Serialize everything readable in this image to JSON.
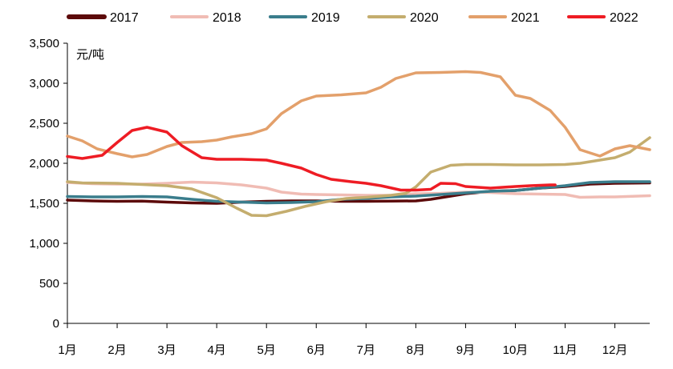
{
  "chart_data": {
    "type": "line",
    "title": "",
    "xlabel": "",
    "ylabel": "元/吨",
    "ylim": [
      0,
      3500
    ],
    "yticks": [
      0,
      500,
      1000,
      1500,
      2000,
      2500,
      3000,
      3500
    ],
    "ytick_labels": [
      "0",
      "500",
      "1,000",
      "1,500",
      "2,000",
      "2,500",
      "3,000",
      "3,500"
    ],
    "xlim": [
      1,
      12.7
    ],
    "xticks": [
      1,
      2,
      3,
      4,
      5,
      6,
      7,
      8,
      9,
      10,
      11,
      12
    ],
    "xtick_labels": [
      "1月",
      "2月",
      "3月",
      "4月",
      "5月",
      "6月",
      "7月",
      "8月",
      "9月",
      "10月",
      "11月",
      "12月"
    ],
    "grid": false,
    "legend_position": "top",
    "series": [
      {
        "name": "2017",
        "color": "#5c0a0a",
        "points": [
          [
            1,
            1540
          ],
          [
            1.5,
            1530
          ],
          [
            2,
            1525
          ],
          [
            2.5,
            1528
          ],
          [
            3,
            1515
          ],
          [
            3.5,
            1505
          ],
          [
            4,
            1500
          ],
          [
            4.5,
            1515
          ],
          [
            5,
            1525
          ],
          [
            5.5,
            1530
          ],
          [
            6,
            1530
          ],
          [
            6.5,
            1525
          ],
          [
            7,
            1525
          ],
          [
            7.5,
            1528
          ],
          [
            8,
            1530
          ],
          [
            8.3,
            1550
          ],
          [
            8.7,
            1590
          ],
          [
            9,
            1620
          ],
          [
            9.5,
            1650
          ],
          [
            10,
            1660
          ],
          [
            10.5,
            1690
          ],
          [
            11,
            1710
          ],
          [
            11.5,
            1740
          ],
          [
            12,
            1750
          ],
          [
            12.7,
            1755
          ]
        ]
      },
      {
        "name": "2018",
        "color": "#f0bcb4",
        "points": [
          [
            1,
            1760
          ],
          [
            1.5,
            1745
          ],
          [
            2,
            1740
          ],
          [
            2.5,
            1740
          ],
          [
            3,
            1750
          ],
          [
            3.5,
            1765
          ],
          [
            4,
            1755
          ],
          [
            4.5,
            1730
          ],
          [
            5,
            1690
          ],
          [
            5.3,
            1640
          ],
          [
            5.7,
            1615
          ],
          [
            6,
            1610
          ],
          [
            6.5,
            1605
          ],
          [
            7,
            1600
          ],
          [
            7.5,
            1600
          ],
          [
            8,
            1620
          ],
          [
            8.5,
            1625
          ],
          [
            9,
            1640
          ],
          [
            9.5,
            1635
          ],
          [
            10,
            1620
          ],
          [
            10.5,
            1615
          ],
          [
            11,
            1610
          ],
          [
            11.3,
            1575
          ],
          [
            11.7,
            1580
          ],
          [
            12,
            1580
          ],
          [
            12.7,
            1595
          ]
        ]
      },
      {
        "name": "2019",
        "color": "#3a7d8c",
        "points": [
          [
            1,
            1585
          ],
          [
            1.5,
            1580
          ],
          [
            2,
            1580
          ],
          [
            2.5,
            1585
          ],
          [
            3,
            1580
          ],
          [
            3.5,
            1550
          ],
          [
            4,
            1525
          ],
          [
            4.5,
            1515
          ],
          [
            5,
            1505
          ],
          [
            5.5,
            1510
          ],
          [
            6,
            1520
          ],
          [
            6.5,
            1550
          ],
          [
            7,
            1560
          ],
          [
            7.5,
            1580
          ],
          [
            8,
            1590
          ],
          [
            8.5,
            1610
          ],
          [
            9,
            1630
          ],
          [
            9.5,
            1650
          ],
          [
            10,
            1660
          ],
          [
            10.5,
            1690
          ],
          [
            11,
            1720
          ],
          [
            11.5,
            1760
          ],
          [
            12,
            1770
          ],
          [
            12.7,
            1770
          ]
        ]
      },
      {
        "name": "2020",
        "color": "#c4ad6e",
        "points": [
          [
            1,
            1770
          ],
          [
            1.3,
            1755
          ],
          [
            2,
            1750
          ],
          [
            2.5,
            1735
          ],
          [
            3,
            1720
          ],
          [
            3.5,
            1680
          ],
          [
            4,
            1570
          ],
          [
            4.4,
            1440
          ],
          [
            4.7,
            1350
          ],
          [
            5,
            1345
          ],
          [
            5.4,
            1400
          ],
          [
            5.8,
            1465
          ],
          [
            6.2,
            1520
          ],
          [
            6.6,
            1560
          ],
          [
            7,
            1575
          ],
          [
            7.5,
            1600
          ],
          [
            7.8,
            1625
          ],
          [
            8,
            1705
          ],
          [
            8.3,
            1890
          ],
          [
            8.7,
            1975
          ],
          [
            9,
            1985
          ],
          [
            9.5,
            1985
          ],
          [
            10,
            1980
          ],
          [
            10.5,
            1980
          ],
          [
            11,
            1985
          ],
          [
            11.3,
            2000
          ],
          [
            11.7,
            2040
          ],
          [
            12,
            2070
          ],
          [
            12.3,
            2140
          ],
          [
            12.7,
            2320
          ]
        ]
      },
      {
        "name": "2021",
        "color": "#e3a06b",
        "points": [
          [
            1,
            2340
          ],
          [
            1.3,
            2280
          ],
          [
            1.6,
            2180
          ],
          [
            2,
            2120
          ],
          [
            2.3,
            2080
          ],
          [
            2.6,
            2110
          ],
          [
            3,
            2210
          ],
          [
            3.3,
            2260
          ],
          [
            3.7,
            2270
          ],
          [
            4,
            2290
          ],
          [
            4.3,
            2330
          ],
          [
            4.7,
            2370
          ],
          [
            5,
            2430
          ],
          [
            5.3,
            2620
          ],
          [
            5.7,
            2780
          ],
          [
            6,
            2840
          ],
          [
            6.5,
            2855
          ],
          [
            7,
            2880
          ],
          [
            7.3,
            2950
          ],
          [
            7.6,
            3060
          ],
          [
            8,
            3130
          ],
          [
            8.5,
            3135
          ],
          [
            9,
            3145
          ],
          [
            9.3,
            3135
          ],
          [
            9.7,
            3080
          ],
          [
            10,
            2850
          ],
          [
            10.3,
            2810
          ],
          [
            10.7,
            2660
          ],
          [
            11,
            2450
          ],
          [
            11.3,
            2170
          ],
          [
            11.7,
            2090
          ],
          [
            12,
            2180
          ],
          [
            12.3,
            2220
          ],
          [
            12.7,
            2170
          ]
        ]
      },
      {
        "name": "2022",
        "color": "#ee1c24",
        "points": [
          [
            1,
            2085
          ],
          [
            1.3,
            2060
          ],
          [
            1.7,
            2100
          ],
          [
            2,
            2260
          ],
          [
            2.3,
            2410
          ],
          [
            2.6,
            2450
          ],
          [
            3,
            2390
          ],
          [
            3.3,
            2220
          ],
          [
            3.7,
            2070
          ],
          [
            4,
            2050
          ],
          [
            4.5,
            2050
          ],
          [
            5,
            2040
          ],
          [
            5.3,
            2000
          ],
          [
            5.7,
            1940
          ],
          [
            6,
            1860
          ],
          [
            6.3,
            1800
          ],
          [
            6.7,
            1770
          ],
          [
            7,
            1750
          ],
          [
            7.3,
            1720
          ],
          [
            7.7,
            1665
          ],
          [
            8,
            1665
          ],
          [
            8.3,
            1675
          ],
          [
            8.5,
            1750
          ],
          [
            8.8,
            1745
          ],
          [
            9,
            1710
          ],
          [
            9.5,
            1690
          ],
          [
            10,
            1710
          ],
          [
            10.3,
            1720
          ],
          [
            10.7,
            1730
          ],
          [
            10.8,
            1730
          ]
        ]
      }
    ]
  }
}
